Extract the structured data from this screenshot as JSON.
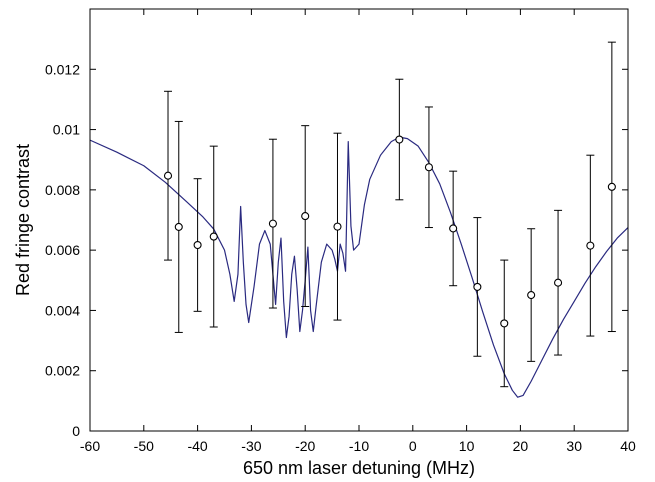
{
  "chart_data": {
    "type": "scatter",
    "title": "",
    "xlabel": "650 nm laser detuning (MHz)",
    "ylabel": "Red fringe contrast",
    "xlim": [
      -60,
      40
    ],
    "ylim": [
      0,
      0.014
    ],
    "x_ticks": [
      -60,
      -50,
      -40,
      -30,
      -20,
      -10,
      0,
      10,
      20,
      30,
      40
    ],
    "x_tick_labels": [
      "-60",
      "-50",
      "-40",
      "-30",
      "-20",
      "-10",
      "0",
      "10",
      "20",
      "30",
      "40"
    ],
    "y_ticks": [
      0,
      0.002,
      0.004,
      0.006,
      0.008,
      0.01,
      0.012
    ],
    "y_tick_labels": [
      "0",
      "0.002",
      "0.004",
      "0.006",
      "0.008",
      "0.01",
      "0.012"
    ],
    "grid": false,
    "legend": "none",
    "measurements": {
      "marker": "open-circle",
      "color": "#000000",
      "points": [
        {
          "x": -45.5,
          "y": 0.00847,
          "err": 0.0028
        },
        {
          "x": -43.5,
          "y": 0.00677,
          "err": 0.0035
        },
        {
          "x": -40.0,
          "y": 0.00617,
          "err": 0.0022
        },
        {
          "x": -37.0,
          "y": 0.00645,
          "err": 0.003
        },
        {
          "x": -26.0,
          "y": 0.00688,
          "err": 0.0028
        },
        {
          "x": -20.0,
          "y": 0.00713,
          "err": 0.003
        },
        {
          "x": -14.0,
          "y": 0.00678,
          "err": 0.0031
        },
        {
          "x": -2.5,
          "y": 0.00967,
          "err": 0.002
        },
        {
          "x": 3.0,
          "y": 0.00875,
          "err": 0.002
        },
        {
          "x": 7.5,
          "y": 0.00672,
          "err": 0.0019
        },
        {
          "x": 12.0,
          "y": 0.00478,
          "err": 0.0023
        },
        {
          "x": 17.0,
          "y": 0.00357,
          "err": 0.0021
        },
        {
          "x": 22.0,
          "y": 0.00451,
          "err": 0.0022
        },
        {
          "x": 27.0,
          "y": 0.00492,
          "err": 0.0024
        },
        {
          "x": 33.0,
          "y": 0.00615,
          "err": 0.003
        },
        {
          "x": 37.0,
          "y": 0.0081,
          "err": 0.0048
        }
      ]
    },
    "fit_curve": {
      "type": "line",
      "color": "#2a2a80",
      "points": [
        [
          -60,
          0.00965
        ],
        [
          -55,
          0.00925
        ],
        [
          -50,
          0.0088
        ],
        [
          -46,
          0.00825
        ],
        [
          -42,
          0.0076
        ],
        [
          -39,
          0.0071
        ],
        [
          -37,
          0.0067
        ],
        [
          -35,
          0.006
        ],
        [
          -34,
          0.0052
        ],
        [
          -33.2,
          0.0043
        ],
        [
          -32.5,
          0.0052
        ],
        [
          -32,
          0.00745
        ],
        [
          -31.5,
          0.0056
        ],
        [
          -31,
          0.0042
        ],
        [
          -30.5,
          0.0036
        ],
        [
          -29.5,
          0.0048
        ],
        [
          -28.5,
          0.0062
        ],
        [
          -27.5,
          0.00665
        ],
        [
          -26.5,
          0.0062
        ],
        [
          -26,
          0.0052
        ],
        [
          -25.5,
          0.0042
        ],
        [
          -25,
          0.0056
        ],
        [
          -24.5,
          0.0064
        ],
        [
          -24,
          0.0043
        ],
        [
          -23.5,
          0.0031
        ],
        [
          -23,
          0.0038
        ],
        [
          -22.5,
          0.0052
        ],
        [
          -22,
          0.0058
        ],
        [
          -21.5,
          0.0047
        ],
        [
          -21,
          0.0033
        ],
        [
          -20.5,
          0.004
        ],
        [
          -20,
          0.005
        ],
        [
          -19.5,
          0.0061
        ],
        [
          -19,
          0.004
        ],
        [
          -18.5,
          0.0033
        ],
        [
          -18,
          0.0041
        ],
        [
          -17,
          0.0056
        ],
        [
          -16,
          0.0062
        ],
        [
          -15,
          0.006
        ],
        [
          -14.5,
          0.0057
        ],
        [
          -14,
          0.0053
        ],
        [
          -13.5,
          0.0062
        ],
        [
          -13,
          0.0059
        ],
        [
          -12.5,
          0.0053
        ],
        [
          -12,
          0.0096
        ],
        [
          -11.5,
          0.0068
        ],
        [
          -11,
          0.006
        ],
        [
          -10,
          0.0062
        ],
        [
          -9,
          0.0075
        ],
        [
          -8,
          0.00835
        ],
        [
          -6,
          0.00915
        ],
        [
          -4,
          0.0096
        ],
        [
          -2.5,
          0.00975
        ],
        [
          -1,
          0.0097
        ],
        [
          1,
          0.00945
        ],
        [
          3,
          0.0089
        ],
        [
          5,
          0.0082
        ],
        [
          7,
          0.00725
        ],
        [
          9,
          0.0062
        ],
        [
          11,
          0.0051
        ],
        [
          13,
          0.00395
        ],
        [
          15,
          0.00285
        ],
        [
          17,
          0.0019
        ],
        [
          18.5,
          0.00135
        ],
        [
          19.5,
          0.00112
        ],
        [
          20.5,
          0.00118
        ],
        [
          22,
          0.00165
        ],
        [
          24,
          0.00235
        ],
        [
          26,
          0.00305
        ],
        [
          28,
          0.0037
        ],
        [
          30,
          0.0043
        ],
        [
          32,
          0.0049
        ],
        [
          34,
          0.00545
        ],
        [
          36,
          0.00595
        ],
        [
          38,
          0.0064
        ],
        [
          40,
          0.00675
        ]
      ]
    }
  }
}
